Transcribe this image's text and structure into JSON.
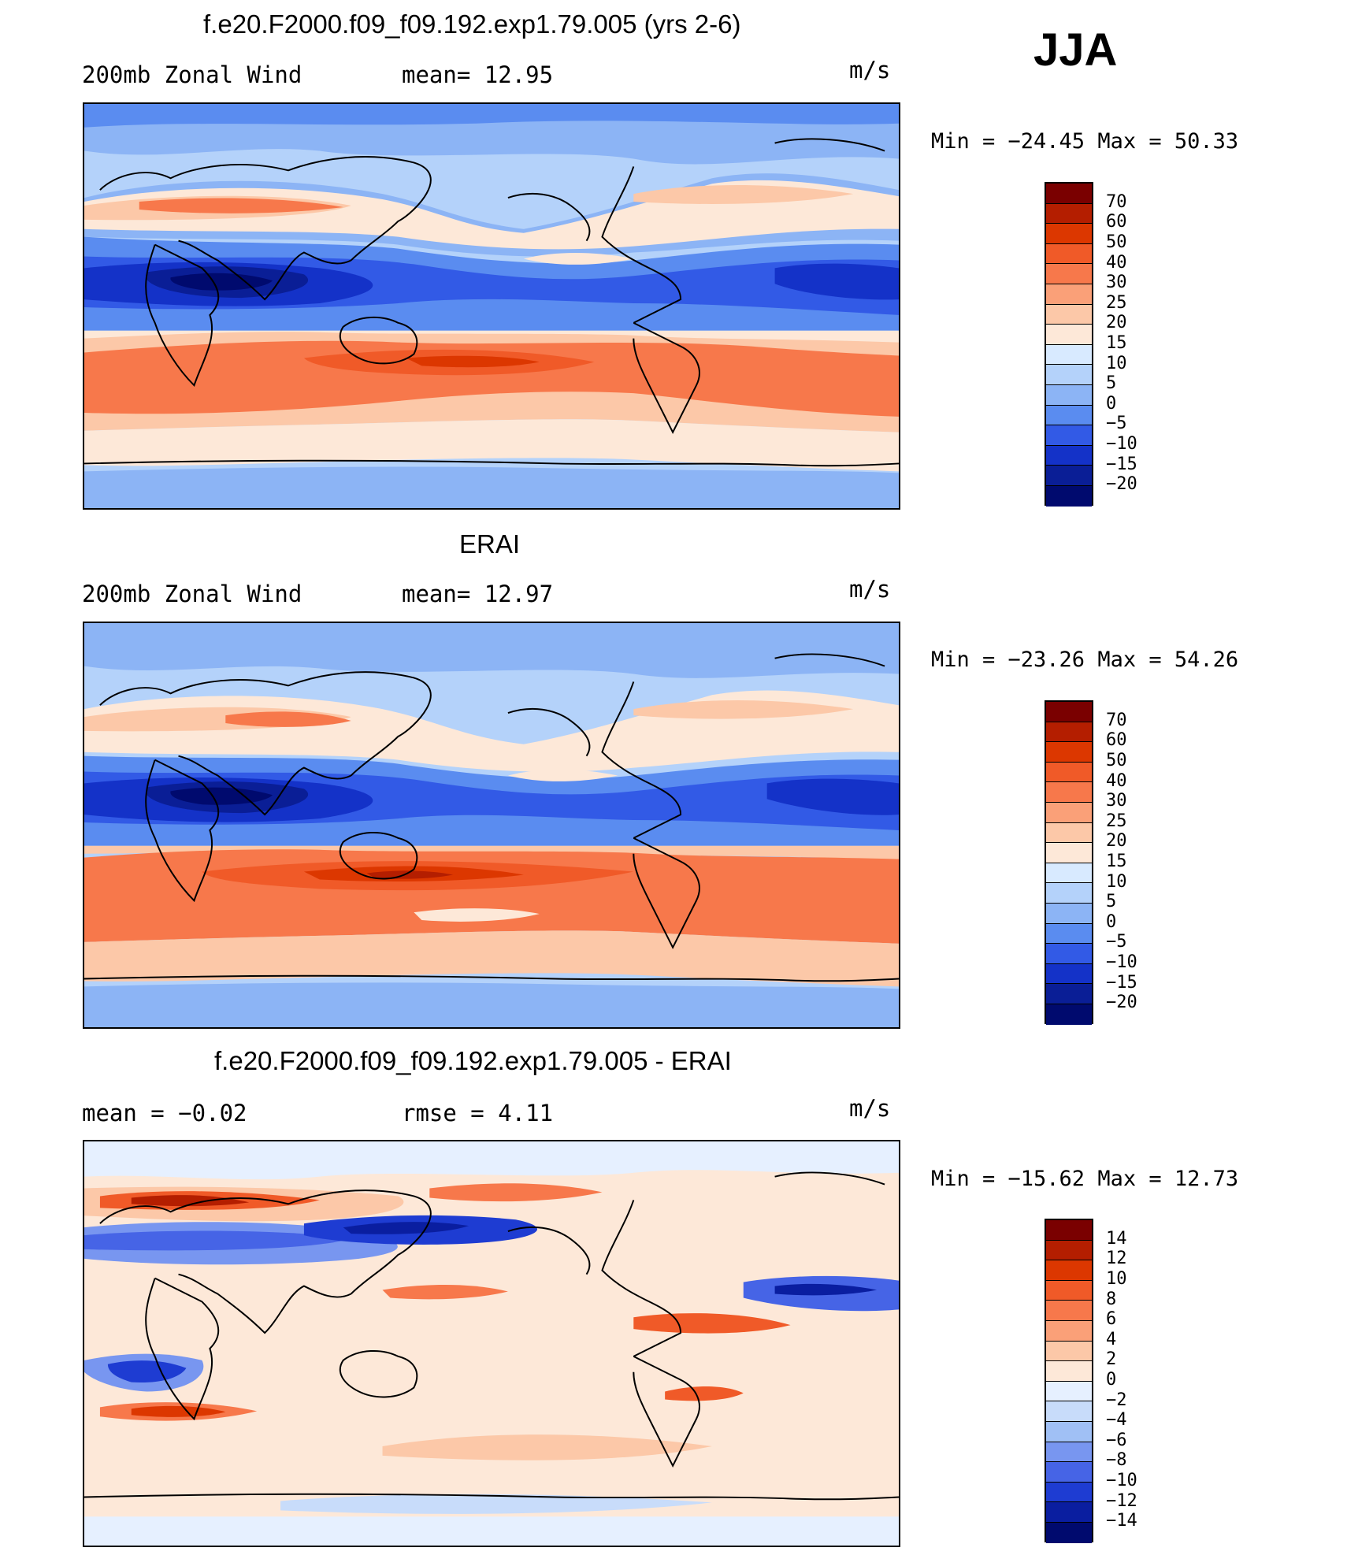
{
  "season": "JJA",
  "panels": [
    {
      "title": "f.e20.F2000.f09_f09.192.exp1.79.005 (yrs 2-6)",
      "left_label": "200mb Zonal Wind",
      "mid_label": "mean=   12.95",
      "units": "m/s",
      "stats": "Min = −24.45 Max =  50.33",
      "levels": [
        "70",
        "60",
        "50",
        "40",
        "30",
        "25",
        "20",
        "15",
        "10",
        "5",
        "0",
        "−5",
        "−10",
        "−15",
        "−20"
      ],
      "colors": [
        "#7a0000",
        "#b41e00",
        "#dc3700",
        "#f05a28",
        "#f7784b",
        "#faa078",
        "#fcc8a8",
        "#fde8d8",
        "#d8eaff",
        "#b4d2fa",
        "#8cb4f5",
        "#5a8cf0",
        "#325ae6",
        "#1432c8",
        "#0a1e96",
        "#000a6e"
      ]
    },
    {
      "title": "ERAI",
      "left_label": "200mb Zonal Wind",
      "mid_label": "mean=   12.97",
      "units": "m/s",
      "stats": "Min = −23.26 Max =  54.26",
      "levels": [
        "70",
        "60",
        "50",
        "40",
        "30",
        "25",
        "20",
        "15",
        "10",
        "5",
        "0",
        "−5",
        "−10",
        "−15",
        "−20"
      ],
      "colors": [
        "#7a0000",
        "#b41e00",
        "#dc3700",
        "#f05a28",
        "#f7784b",
        "#faa078",
        "#fcc8a8",
        "#fde8d8",
        "#d8eaff",
        "#b4d2fa",
        "#8cb4f5",
        "#5a8cf0",
        "#325ae6",
        "#1432c8",
        "#0a1e96",
        "#000a6e"
      ]
    },
    {
      "title": "f.e20.F2000.f09_f09.192.exp1.79.005 - ERAI",
      "left_label": "mean =   −0.02",
      "mid_label": "rmse =    4.11",
      "units": "m/s",
      "stats": "Min = −15.62 Max =  12.73",
      "levels": [
        "14",
        "12",
        "10",
        "8",
        "6",
        "4",
        "2",
        "0",
        "−2",
        "−4",
        "−6",
        "−8",
        "−10",
        "−12",
        "−14"
      ],
      "colors": [
        "#7a0000",
        "#b41e00",
        "#dc3700",
        "#f05a28",
        "#f7784b",
        "#faa078",
        "#fcc8a8",
        "#fde8d8",
        "#e6f0ff",
        "#c8dcfa",
        "#a0c0f5",
        "#7896f0",
        "#4664e6",
        "#1e3cd2",
        "#0a1ea0",
        "#000a6e"
      ]
    }
  ]
}
